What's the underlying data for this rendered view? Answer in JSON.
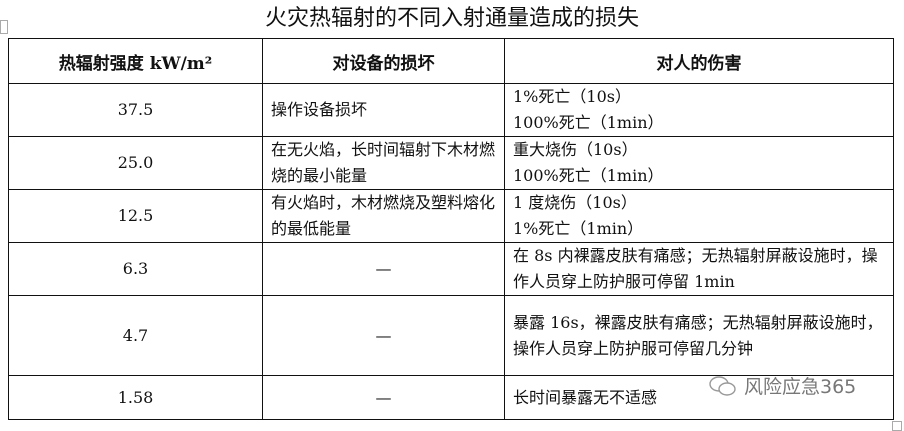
{
  "title": "火灾热辐射的不同入射通量造成的损失",
  "headers": [
    "热辐射强度 kW/m²",
    "对设备的损坏",
    "对人的伤害"
  ],
  "rows": [
    {
      "intensity": "37.5",
      "equipment": "操作设备损坏",
      "people": [
        "1%死亡（10s）",
        "100%死亡（1min）"
      ]
    },
    {
      "intensity": "25.0",
      "equipment": "在无火焰，长时间辐射下木材燃烧的最小能量",
      "people": [
        "重大烧伤（10s）",
        "100%死亡（1min）"
      ]
    },
    {
      "intensity": "12.5",
      "equipment": "有火焰时，木材燃烧及塑料熔化的最低能量",
      "people": [
        "1 度烧伤（10s）",
        "1%死亡（1min）"
      ]
    },
    {
      "intensity": "6.3",
      "equipment": "—",
      "people": [
        "在 8s 内裸露皮肤有痛感；无热辐射屏蔽设施时，操作人员穿上防护服可停留 1min"
      ]
    },
    {
      "intensity": "4.7",
      "equipment": "—",
      "people": [
        "暴露 16s，裸露皮肤有痛感；无热辐射屏蔽设施时，操作人员穿上防护服可停留几分钟"
      ]
    },
    {
      "intensity": "1.58",
      "equipment": "—",
      "people": [
        "长时间暴露无不适感"
      ]
    }
  ],
  "watermark": "风险应急365"
}
